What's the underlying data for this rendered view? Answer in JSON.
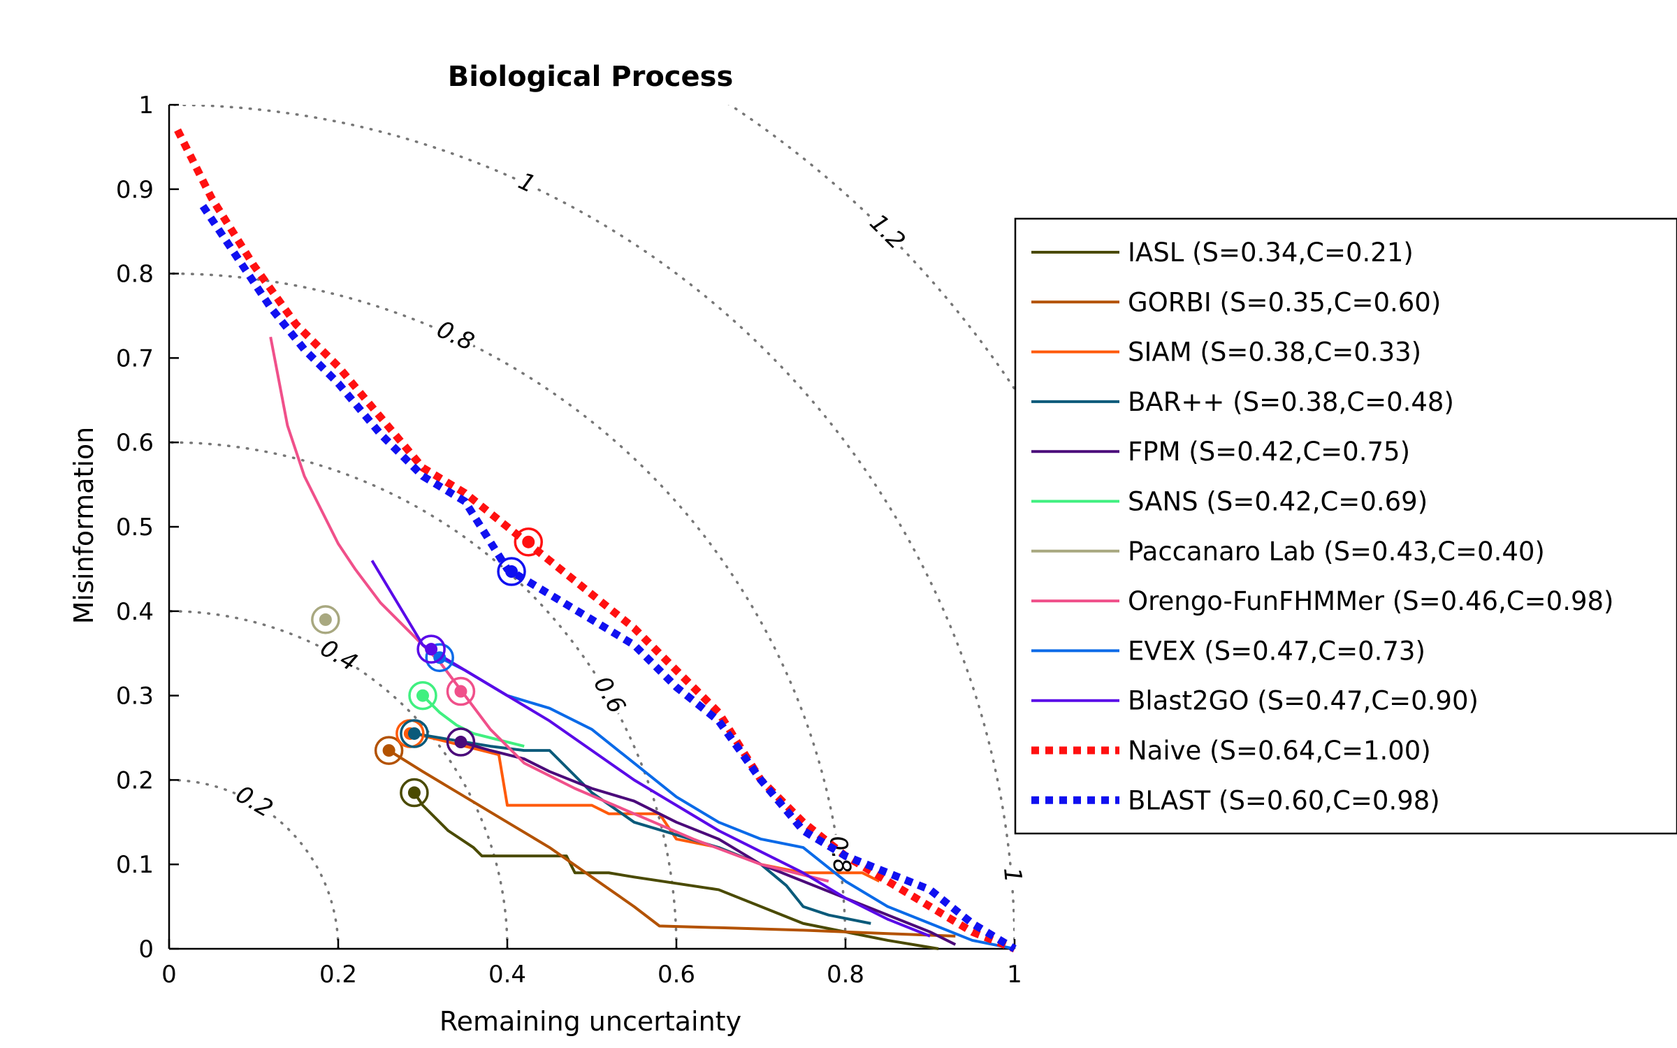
{
  "chart_data": {
    "type": "line",
    "title": "Biological Process",
    "xlabel": "Remaining uncertainty",
    "ylabel": "Misinformation",
    "xlim": [
      0,
      1
    ],
    "ylim": [
      0,
      1
    ],
    "xticks": [
      "0",
      "0.2",
      "0.4",
      "0.6",
      "0.8",
      "1"
    ],
    "yticks": [
      "0",
      "0.1",
      "0.2",
      "0.3",
      "0.4",
      "0.5",
      "0.6",
      "0.7",
      "0.8",
      "0.9",
      "1"
    ],
    "x_tick_values": [
      0,
      0.2,
      0.4,
      0.6,
      0.8,
      1
    ],
    "y_tick_values": [
      0,
      0.1,
      0.2,
      0.3,
      0.4,
      0.5,
      0.6,
      0.7,
      0.8,
      0.9,
      1
    ],
    "contours": [
      {
        "radius": 0.2,
        "label": "0.2",
        "label_angle_deg": 60
      },
      {
        "radius": 0.4,
        "label": "0.4",
        "label_angle_deg": 60
      },
      {
        "radius": 0.6,
        "label": "0.6",
        "label_angle_deg": 30
      },
      {
        "radius": 0.8,
        "label": "0.8",
        "label_angle_deg": 8
      },
      {
        "radius": 0.8,
        "label": "0.8",
        "label_angle_deg": 65
      },
      {
        "radius": 1.0,
        "label": "1",
        "label_angle_deg": 5
      },
      {
        "radius": 1.0,
        "label": "1",
        "label_angle_deg": 65
      },
      {
        "radius": 1.2,
        "label": "1.2",
        "label_angle_deg": 45
      }
    ],
    "legend_position": "right",
    "series": [
      {
        "name": "IASL (S=0.34,C=0.21)",
        "color": "#4a4a00",
        "style": "solid",
        "x": [
          0.29,
          0.3,
          0.33,
          0.36,
          0.37,
          0.4,
          0.44,
          0.47,
          0.48,
          0.52,
          0.55,
          0.65,
          0.75,
          0.85,
          0.91
        ],
        "y": [
          0.185,
          0.17,
          0.14,
          0.12,
          0.11,
          0.11,
          0.11,
          0.11,
          0.09,
          0.09,
          0.085,
          0.07,
          0.03,
          0.01,
          0.0
        ],
        "marker": [
          0.29,
          0.185
        ]
      },
      {
        "name": "GORBI (S=0.35,C=0.60)",
        "color": "#b35200",
        "style": "solid",
        "x": [
          0.26,
          0.3,
          0.35,
          0.4,
          0.45,
          0.5,
          0.55,
          0.58,
          0.65,
          0.75,
          0.85,
          0.93
        ],
        "y": [
          0.235,
          0.21,
          0.18,
          0.15,
          0.12,
          0.085,
          0.05,
          0.027,
          0.025,
          0.022,
          0.018,
          0.015
        ],
        "marker": [
          0.26,
          0.235
        ]
      },
      {
        "name": "SIAM (S=0.38,C=0.33)",
        "color": "#ff5a0a",
        "style": "solid",
        "x": [
          0.29,
          0.31,
          0.35,
          0.39,
          0.4,
          0.48,
          0.5,
          0.52,
          0.55,
          0.58,
          0.6,
          0.65,
          0.7,
          0.75,
          0.82,
          0.84
        ],
        "y": [
          0.255,
          0.25,
          0.24,
          0.23,
          0.17,
          0.17,
          0.17,
          0.16,
          0.16,
          0.16,
          0.13,
          0.12,
          0.1,
          0.09,
          0.09,
          0.08
        ],
        "marker": [
          0.285,
          0.255
        ]
      },
      {
        "name": "BAR++ (S=0.38,C=0.48)",
        "color": "#0a5a7a",
        "style": "solid",
        "x": [
          0.29,
          0.32,
          0.35,
          0.38,
          0.42,
          0.45,
          0.5,
          0.55,
          0.6,
          0.65,
          0.7,
          0.73,
          0.75,
          0.78,
          0.83
        ],
        "y": [
          0.255,
          0.25,
          0.245,
          0.24,
          0.235,
          0.235,
          0.185,
          0.15,
          0.135,
          0.12,
          0.1,
          0.075,
          0.05,
          0.04,
          0.03
        ],
        "marker": [
          0.29,
          0.255
        ]
      },
      {
        "name": "FPM (S=0.42,C=0.75)",
        "color": "#4b0a7a",
        "style": "solid",
        "x": [
          0.345,
          0.38,
          0.42,
          0.45,
          0.5,
          0.55,
          0.6,
          0.65,
          0.7,
          0.75,
          0.8,
          0.85,
          0.9,
          0.93
        ],
        "y": [
          0.245,
          0.235,
          0.225,
          0.21,
          0.19,
          0.175,
          0.15,
          0.13,
          0.1,
          0.08,
          0.06,
          0.04,
          0.02,
          0.005
        ],
        "marker": [
          0.345,
          0.245
        ]
      },
      {
        "name": "SANS (S=0.42,C=0.69)",
        "color": "#40f080",
        "style": "solid",
        "x": [
          0.3,
          0.32,
          0.34,
          0.36,
          0.38,
          0.4,
          0.42
        ],
        "y": [
          0.3,
          0.28,
          0.265,
          0.255,
          0.25,
          0.245,
          0.24
        ],
        "marker": [
          0.3,
          0.3
        ]
      },
      {
        "name": "Paccanaro Lab (S=0.43,C=0.40)",
        "color": "#a8a880",
        "style": "solid",
        "x": [
          0.185
        ],
        "y": [
          0.39
        ],
        "marker": [
          0.185,
          0.39
        ]
      },
      {
        "name": "Orengo-FunFHMMer (S=0.46,C=0.98)",
        "color": "#f0508a",
        "style": "solid",
        "x": [
          0.12,
          0.14,
          0.16,
          0.18,
          0.2,
          0.22,
          0.25,
          0.29,
          0.32,
          0.35,
          0.38,
          0.42,
          0.48,
          0.55,
          0.62,
          0.7,
          0.78
        ],
        "y": [
          0.725,
          0.62,
          0.56,
          0.52,
          0.48,
          0.45,
          0.41,
          0.37,
          0.34,
          0.3,
          0.26,
          0.22,
          0.19,
          0.16,
          0.13,
          0.1,
          0.08
        ],
        "marker": [
          0.345,
          0.305
        ]
      },
      {
        "name": "EVEX (S=0.47,C=0.73)",
        "color": "#0a6ae8",
        "style": "solid",
        "x": [
          0.3,
          0.32,
          0.35,
          0.4,
          0.45,
          0.5,
          0.55,
          0.6,
          0.65,
          0.7,
          0.75,
          0.8,
          0.85,
          0.9,
          0.95,
          1.0
        ],
        "y": [
          0.36,
          0.345,
          0.33,
          0.3,
          0.285,
          0.26,
          0.22,
          0.18,
          0.15,
          0.13,
          0.12,
          0.08,
          0.05,
          0.03,
          0.01,
          0.0
        ],
        "marker": [
          0.32,
          0.345
        ]
      },
      {
        "name": "Blast2GO (S=0.47,C=0.90)",
        "color": "#5a0ae8",
        "style": "solid",
        "x": [
          0.24,
          0.27,
          0.3,
          0.35,
          0.4,
          0.45,
          0.5,
          0.55,
          0.6,
          0.65,
          0.7,
          0.75,
          0.8,
          0.85,
          0.9
        ],
        "y": [
          0.46,
          0.41,
          0.36,
          0.33,
          0.3,
          0.27,
          0.235,
          0.2,
          0.17,
          0.14,
          0.115,
          0.09,
          0.06,
          0.035,
          0.015
        ],
        "marker": [
          0.31,
          0.355
        ]
      },
      {
        "name": "Naive (S=0.64,C=1.00)",
        "color": "#ff1010",
        "style": "dotted",
        "x": [
          0.01,
          0.05,
          0.1,
          0.15,
          0.2,
          0.25,
          0.3,
          0.35,
          0.4,
          0.45,
          0.5,
          0.55,
          0.6,
          0.65,
          0.7,
          0.75,
          0.8,
          0.85,
          0.9,
          0.95,
          1.0
        ],
        "y": [
          0.97,
          0.89,
          0.81,
          0.74,
          0.69,
          0.63,
          0.57,
          0.54,
          0.5,
          0.46,
          0.42,
          0.38,
          0.33,
          0.28,
          0.2,
          0.15,
          0.11,
          0.08,
          0.05,
          0.02,
          0.0
        ],
        "marker": [
          0.425,
          0.482
        ]
      },
      {
        "name": "BLAST (S=0.60,C=0.98)",
        "color": "#1010f0",
        "style": "dotted",
        "x": [
          0.04,
          0.08,
          0.12,
          0.16,
          0.2,
          0.25,
          0.3,
          0.35,
          0.4,
          0.45,
          0.5,
          0.55,
          0.6,
          0.65,
          0.7,
          0.75,
          0.8,
          0.85,
          0.9,
          0.95,
          1.0
        ],
        "y": [
          0.88,
          0.82,
          0.76,
          0.71,
          0.67,
          0.61,
          0.56,
          0.53,
          0.45,
          0.42,
          0.39,
          0.36,
          0.31,
          0.27,
          0.2,
          0.14,
          0.11,
          0.09,
          0.07,
          0.03,
          0.0
        ],
        "marker": [
          0.405,
          0.447
        ]
      }
    ]
  }
}
